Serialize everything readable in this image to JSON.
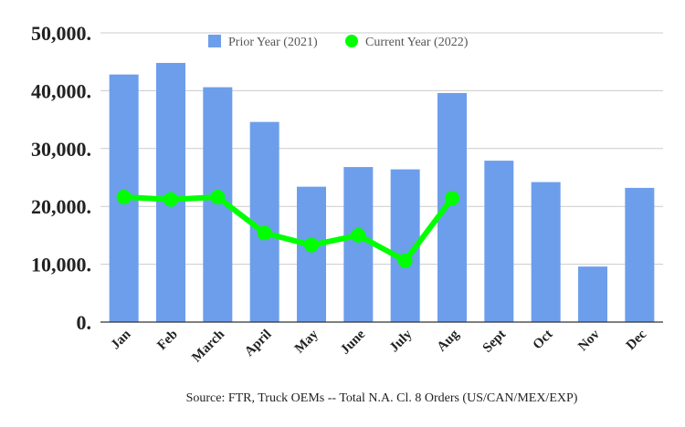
{
  "chart_data": {
    "type": "bar",
    "categories": [
      "Jan",
      "Feb",
      "March",
      "April",
      "May",
      "June",
      "July",
      "Aug",
      "Sept",
      "Oct",
      "Nov",
      "Dec"
    ],
    "series": [
      {
        "name": "Prior Year (2021)",
        "type": "bar",
        "color": "#6d9eeb",
        "values": [
          42800,
          44800,
          40600,
          34600,
          23400,
          26800,
          26400,
          39600,
          27900,
          24200,
          9600,
          23200
        ]
      },
      {
        "name": "Current Year (2022)",
        "type": "line",
        "color": "#00ff00",
        "values": [
          21600,
          21200,
          21600,
          15400,
          13300,
          15000,
          10600,
          21400,
          null,
          null,
          null,
          null
        ]
      }
    ],
    "yticks": [
      "0.",
      "10,000.",
      "20,000.",
      "30,000.",
      "40,000.",
      "50,000."
    ],
    "ylim": [
      0,
      50000
    ],
    "grid": true,
    "legend_position": "top",
    "source": "Source: FTR, Truck OEMs -- Total N.A. Cl. 8 Orders (US/CAN/MEX/EXP)"
  }
}
